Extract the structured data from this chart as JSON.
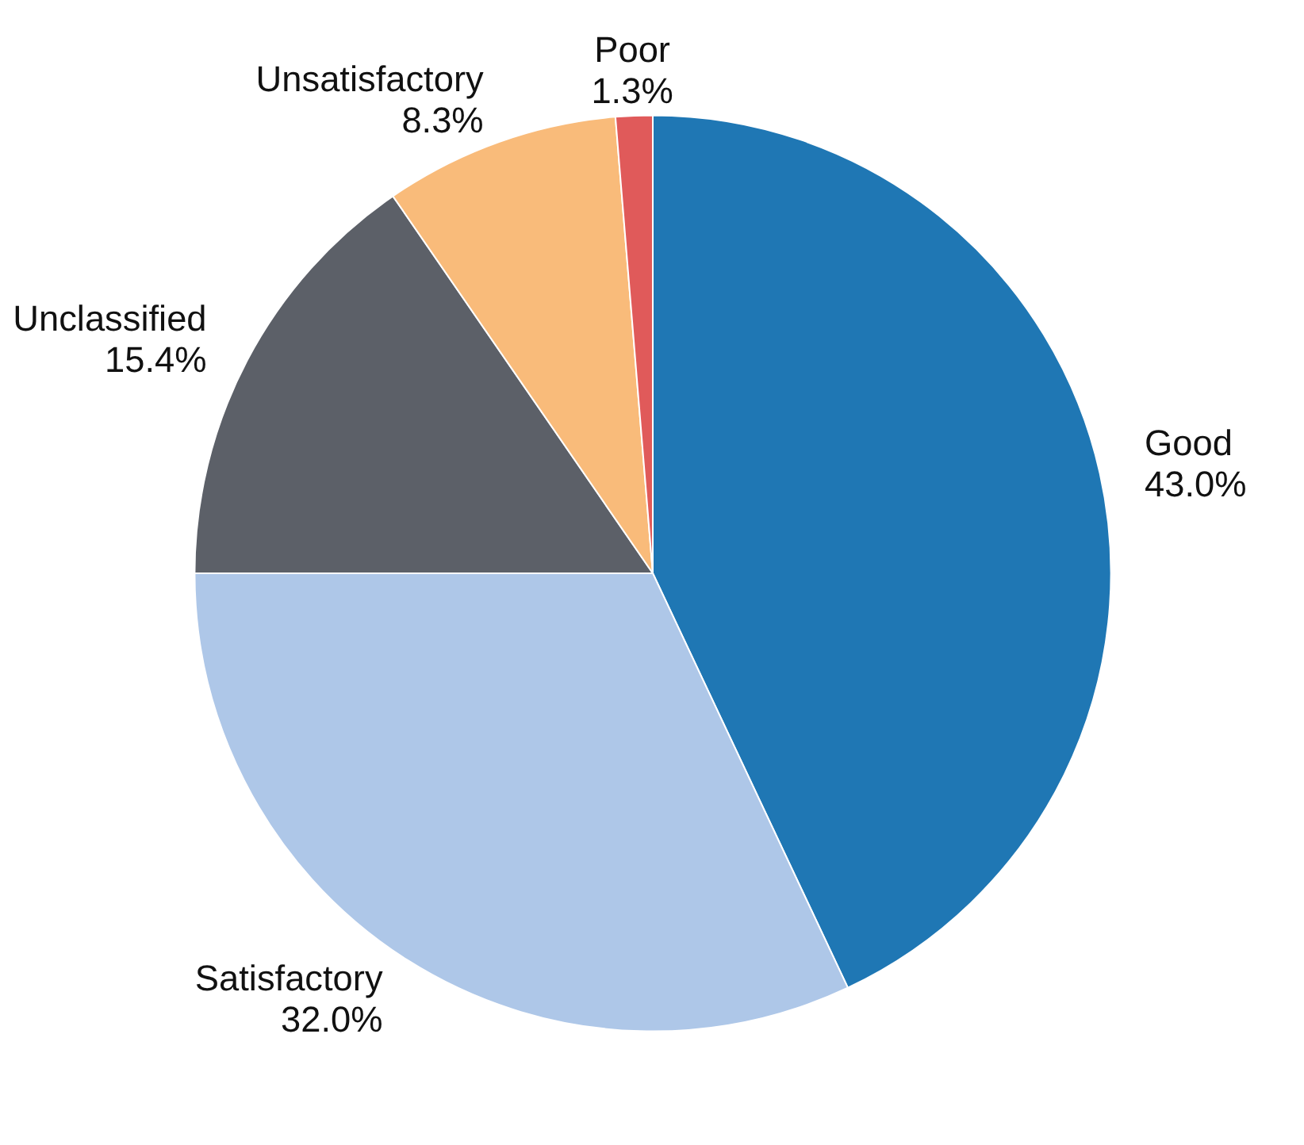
{
  "chart_data": {
    "type": "pie",
    "categories": [
      "Good",
      "Satisfactory",
      "Unclassified",
      "Unsatisfactory",
      "Poor"
    ],
    "values": [
      43.0,
      32.0,
      15.4,
      8.3,
      1.3
    ],
    "value_labels": [
      "43.0%",
      "32.0%",
      "15.4%",
      "8.3%",
      "1.3%"
    ],
    "colors": [
      "#1f77b4",
      "#aec7e8",
      "#5c6068",
      "#f9bb7a",
      "#e05a5a"
    ]
  }
}
